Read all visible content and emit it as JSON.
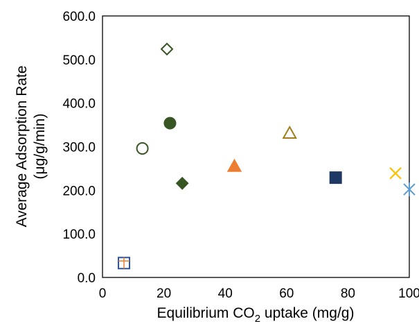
{
  "chart_data": {
    "type": "scatter",
    "xlabel_parts": [
      "Equilibrium CO",
      "2",
      " uptake (mg/g)"
    ],
    "ylabel_lines": [
      "Average Adsorption Rate",
      "(μg/g/min)"
    ],
    "xlim": [
      0,
      100
    ],
    "ylim": [
      0,
      600
    ],
    "x_ticks": [
      0,
      20,
      40,
      60,
      80,
      100
    ],
    "y_ticks": [
      0,
      100,
      200,
      300,
      400,
      500,
      600
    ],
    "x_tick_labels": [
      "0",
      "20",
      "40",
      "60",
      "80",
      "100"
    ],
    "y_tick_labels": [
      "0.0",
      "100.0",
      "200.0",
      "300.0",
      "400.0",
      "500.0",
      "600.0"
    ],
    "grid": false,
    "points": [
      {
        "x": 7,
        "y": 33,
        "marker": "square-plus",
        "color": "#2e5597",
        "color2": "#ed7d31",
        "filled": false
      },
      {
        "x": 13,
        "y": 296,
        "marker": "circle",
        "color": "#375623",
        "filled": false
      },
      {
        "x": 21,
        "y": 524,
        "marker": "diamond",
        "color": "#375623",
        "filled": false
      },
      {
        "x": 22,
        "y": 354,
        "marker": "circle",
        "color": "#375623",
        "filled": true
      },
      {
        "x": 26,
        "y": 216,
        "marker": "diamond",
        "color": "#375623",
        "filled": true
      },
      {
        "x": 43,
        "y": 255,
        "marker": "triangle",
        "color": "#ed7d31",
        "filled": true
      },
      {
        "x": 61,
        "y": 331,
        "marker": "triangle",
        "color": "#a07c1a",
        "filled": false
      },
      {
        "x": 76,
        "y": 229,
        "marker": "square",
        "color": "#1f3864",
        "filled": true
      },
      {
        "x": 95.5,
        "y": 239,
        "marker": "x",
        "color": "#ffc000",
        "filled": false
      },
      {
        "x": 100,
        "y": 202,
        "marker": "star",
        "color": "#5b9bd5",
        "filled": false
      }
    ]
  }
}
